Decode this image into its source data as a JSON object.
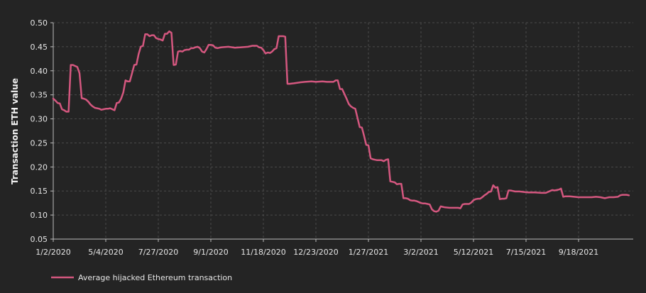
{
  "chart_data": {
    "type": "line",
    "ylabel": "Transaction ETH value",
    "ylim": [
      0.05,
      0.5
    ],
    "yticks": [
      "0.05",
      "0.10",
      "0.15",
      "0.20",
      "0.25",
      "0.30",
      "0.35",
      "0.40",
      "0.45",
      "0.50"
    ],
    "xticks": [
      {
        "label": "1/2/2020",
        "date": "2020-01-02"
      },
      {
        "label": "5/4/2020",
        "date": "2020-05-04"
      },
      {
        "label": "7/27/2020",
        "date": "2020-07-27"
      },
      {
        "label": "9/1/2020",
        "date": "2020-09-01"
      },
      {
        "label": "11/18/2020",
        "date": "2020-11-18"
      },
      {
        "label": "12/23/2020",
        "date": "2020-12-23"
      },
      {
        "label": "1/27/2021",
        "date": "2021-01-27"
      },
      {
        "label": "3/2/2021",
        "date": "2021-03-02"
      },
      {
        "label": "5/12/2021",
        "date": "2021-05-12"
      },
      {
        "label": "7/15/2021",
        "date": "2021-07-15"
      },
      {
        "label": "9/18/2021",
        "date": "2021-09-18"
      }
    ],
    "grid": true,
    "legend": "bottom-left",
    "series": [
      {
        "name": "Average hijacked Ethereum transaction",
        "color": "#d4577f",
        "points": [
          [
            0,
            0.342
          ],
          [
            2,
            0.338
          ],
          [
            4,
            0.333
          ],
          [
            6,
            0.332
          ],
          [
            8,
            0.32
          ],
          [
            10,
            0.318
          ],
          [
            12,
            0.315
          ],
          [
            14,
            0.315
          ],
          [
            16,
            0.412
          ],
          [
            18,
            0.412
          ],
          [
            20,
            0.41
          ],
          [
            22,
            0.408
          ],
          [
            24,
            0.395
          ],
          [
            26,
            0.343
          ],
          [
            28,
            0.342
          ],
          [
            30,
            0.34
          ],
          [
            32,
            0.336
          ],
          [
            34,
            0.33
          ],
          [
            36,
            0.326
          ],
          [
            38,
            0.323
          ],
          [
            40,
            0.322
          ],
          [
            42,
            0.321
          ],
          [
            44,
            0.319
          ],
          [
            46,
            0.32
          ],
          [
            48,
            0.321
          ],
          [
            50,
            0.321
          ],
          [
            52,
            0.322
          ],
          [
            54,
            0.32
          ],
          [
            56,
            0.318
          ],
          [
            58,
            0.333
          ],
          [
            60,
            0.334
          ],
          [
            62,
            0.342
          ],
          [
            64,
            0.355
          ],
          [
            66,
            0.38
          ],
          [
            68,
            0.378
          ],
          [
            70,
            0.378
          ],
          [
            72,
            0.395
          ],
          [
            74,
            0.412
          ],
          [
            76,
            0.413
          ],
          [
            78,
            0.435
          ],
          [
            80,
            0.45
          ],
          [
            82,
            0.452
          ],
          [
            84,
            0.476
          ],
          [
            86,
            0.476
          ],
          [
            88,
            0.472
          ],
          [
            90,
            0.474
          ],
          [
            92,
            0.474
          ],
          [
            94,
            0.468
          ],
          [
            96,
            0.466
          ],
          [
            98,
            0.465
          ],
          [
            100,
            0.463
          ],
          [
            102,
            0.477
          ],
          [
            104,
            0.477
          ],
          [
            106,
            0.482
          ],
          [
            108,
            0.479
          ],
          [
            110,
            0.412
          ],
          [
            112,
            0.413
          ],
          [
            114,
            0.44
          ],
          [
            116,
            0.441
          ],
          [
            118,
            0.44
          ],
          [
            120,
            0.443
          ],
          [
            122,
            0.444
          ],
          [
            124,
            0.444
          ],
          [
            126,
            0.447
          ],
          [
            128,
            0.447
          ],
          [
            130,
            0.449
          ],
          [
            132,
            0.45
          ],
          [
            134,
            0.447
          ],
          [
            136,
            0.44
          ],
          [
            138,
            0.438
          ],
          [
            140,
            0.445
          ],
          [
            142,
            0.454
          ],
          [
            144,
            0.454
          ],
          [
            146,
            0.453
          ],
          [
            148,
            0.448
          ],
          [
            150,
            0.447
          ],
          [
            152,
            0.448
          ],
          [
            154,
            0.449
          ],
          [
            160,
            0.45
          ],
          [
            166,
            0.448
          ],
          [
            172,
            0.449
          ],
          [
            178,
            0.45
          ],
          [
            182,
            0.452
          ],
          [
            186,
            0.452
          ],
          [
            188,
            0.449
          ],
          [
            190,
            0.448
          ],
          [
            192,
            0.443
          ],
          [
            194,
            0.436
          ],
          [
            196,
            0.438
          ],
          [
            198,
            0.437
          ],
          [
            200,
            0.44
          ],
          [
            202,
            0.445
          ],
          [
            204,
            0.447
          ],
          [
            206,
            0.472
          ],
          [
            210,
            0.472
          ],
          [
            212,
            0.471
          ],
          [
            214,
            0.373
          ],
          [
            216,
            0.373
          ],
          [
            220,
            0.374
          ],
          [
            226,
            0.376
          ],
          [
            230,
            0.377
          ],
          [
            236,
            0.378
          ],
          [
            240,
            0.377
          ],
          [
            246,
            0.378
          ],
          [
            250,
            0.377
          ],
          [
            256,
            0.377
          ],
          [
            258,
            0.38
          ],
          [
            260,
            0.38
          ],
          [
            262,
            0.362
          ],
          [
            264,
            0.362
          ],
          [
            266,
            0.352
          ],
          [
            268,
            0.342
          ],
          [
            270,
            0.331
          ],
          [
            272,
            0.326
          ],
          [
            274,
            0.323
          ],
          [
            276,
            0.321
          ],
          [
            278,
            0.302
          ],
          [
            280,
            0.283
          ],
          [
            282,
            0.282
          ],
          [
            284,
            0.265
          ],
          [
            286,
            0.246
          ],
          [
            288,
            0.245
          ],
          [
            290,
            0.218
          ],
          [
            292,
            0.216
          ],
          [
            294,
            0.215
          ],
          [
            296,
            0.214
          ],
          [
            298,
            0.214
          ],
          [
            300,
            0.214
          ],
          [
            302,
            0.212
          ],
          [
            304,
            0.215
          ],
          [
            306,
            0.216
          ],
          [
            308,
            0.17
          ],
          [
            310,
            0.169
          ],
          [
            312,
            0.168
          ],
          [
            314,
            0.164
          ],
          [
            316,
            0.165
          ],
          [
            318,
            0.165
          ],
          [
            320,
            0.135
          ],
          [
            322,
            0.135
          ],
          [
            324,
            0.134
          ],
          [
            326,
            0.131
          ],
          [
            328,
            0.13
          ],
          [
            330,
            0.13
          ],
          [
            332,
            0.129
          ],
          [
            334,
            0.127
          ],
          [
            336,
            0.125
          ],
          [
            338,
            0.124
          ],
          [
            340,
            0.124
          ],
          [
            342,
            0.123
          ],
          [
            344,
            0.122
          ],
          [
            346,
            0.112
          ],
          [
            348,
            0.108
          ],
          [
            350,
            0.107
          ],
          [
            352,
            0.109
          ],
          [
            354,
            0.118
          ],
          [
            356,
            0.117
          ],
          [
            358,
            0.116
          ],
          [
            362,
            0.115
          ],
          [
            366,
            0.115
          ],
          [
            370,
            0.115
          ],
          [
            372,
            0.114
          ],
          [
            374,
            0.122
          ],
          [
            376,
            0.123
          ],
          [
            380,
            0.123
          ],
          [
            382,
            0.126
          ],
          [
            384,
            0.131
          ],
          [
            386,
            0.133
          ],
          [
            388,
            0.134
          ],
          [
            390,
            0.134
          ],
          [
            392,
            0.137
          ],
          [
            394,
            0.141
          ],
          [
            396,
            0.144
          ],
          [
            398,
            0.148
          ],
          [
            400,
            0.149
          ],
          [
            402,
            0.162
          ],
          [
            404,
            0.157
          ],
          [
            406,
            0.158
          ],
          [
            408,
            0.133
          ],
          [
            410,
            0.134
          ],
          [
            412,
            0.134
          ],
          [
            414,
            0.135
          ],
          [
            416,
            0.151
          ],
          [
            418,
            0.151
          ],
          [
            420,
            0.15
          ],
          [
            422,
            0.149
          ],
          [
            426,
            0.149
          ],
          [
            430,
            0.148
          ],
          [
            434,
            0.147
          ],
          [
            440,
            0.147
          ],
          [
            446,
            0.146
          ],
          [
            450,
            0.146
          ],
          [
            452,
            0.148
          ],
          [
            454,
            0.15
          ],
          [
            456,
            0.152
          ],
          [
            458,
            0.151
          ],
          [
            460,
            0.152
          ],
          [
            462,
            0.153
          ],
          [
            464,
            0.155
          ],
          [
            466,
            0.138
          ],
          [
            468,
            0.139
          ],
          [
            472,
            0.139
          ],
          [
            476,
            0.138
          ],
          [
            480,
            0.137
          ],
          [
            486,
            0.137
          ],
          [
            492,
            0.137
          ],
          [
            496,
            0.138
          ],
          [
            500,
            0.137
          ],
          [
            504,
            0.135
          ],
          [
            506,
            0.136
          ],
          [
            508,
            0.137
          ],
          [
            512,
            0.137
          ],
          [
            516,
            0.138
          ],
          [
            518,
            0.141
          ],
          [
            520,
            0.142
          ],
          [
            524,
            0.142
          ],
          [
            526,
            0.141
          ]
        ]
      }
    ]
  }
}
